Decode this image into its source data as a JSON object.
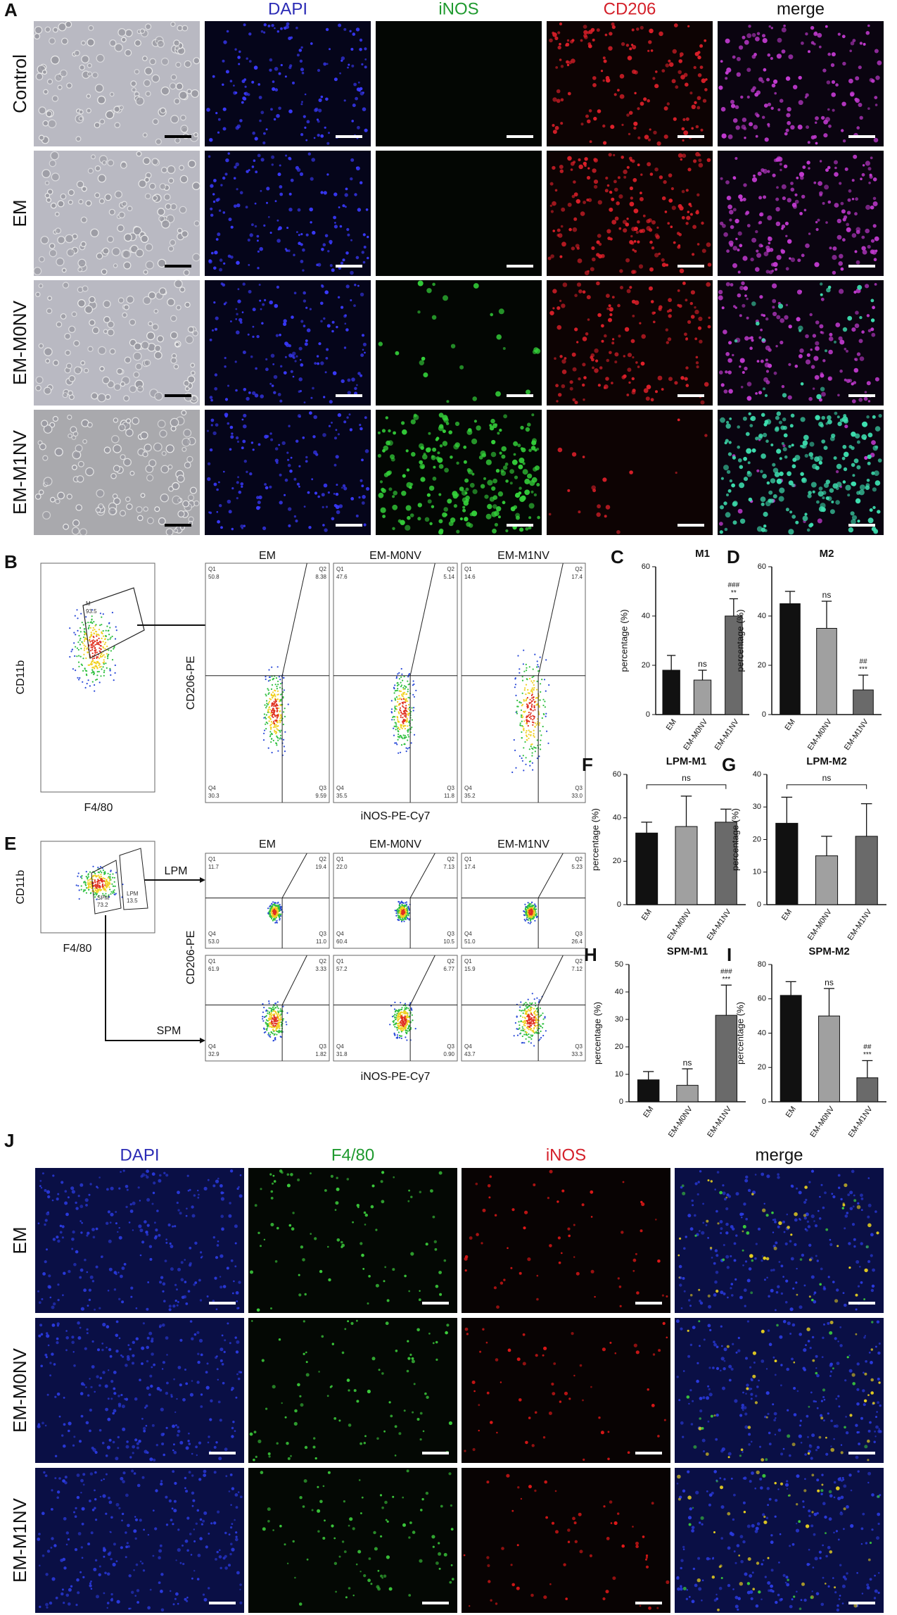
{
  "panel_a": {
    "label": "A",
    "columns": [
      "DAPI",
      "iNOS",
      "CD206",
      "merge"
    ],
    "rows": [
      "Control",
      "EM",
      "EM-M0NV",
      "EM-M1NV"
    ]
  },
  "panel_b": {
    "label": "B",
    "gate": {
      "y_axis": "CD11b",
      "x_axis": "F4/80",
      "name": "M",
      "percent": "93.5"
    },
    "groups": [
      "EM",
      "EM-M0NV",
      "EM-M1NV"
    ],
    "y_axis": "CD206-PE",
    "x_axis": "iNOS-PE-Cy7",
    "quadrant_names": [
      "Q1",
      "Q2",
      "Q3",
      "Q4"
    ],
    "quadrants": [
      [
        "50.8",
        "8.38",
        "9.59",
        "30.3"
      ],
      [
        "47.6",
        "5.14",
        "11.8",
        "35.5"
      ],
      [
        "14.6",
        "17.4",
        "33.0",
        "35.2"
      ]
    ]
  },
  "panel_e": {
    "label": "E",
    "gate": {
      "y_axis": "CD11b",
      "x_axis": "F4/80",
      "lpm": "LPM",
      "lpm_percent": "13.5",
      "spm": "SPM",
      "spm_percent": "73.2"
    },
    "arrows": [
      "LPM",
      "SPM"
    ],
    "groups": [
      "EM",
      "EM-M0NV",
      "EM-M1NV"
    ],
    "y_axis": "CD206-PE",
    "x_axis": "iNOS-PE-Cy7",
    "quadrant_names": [
      "Q1",
      "Q2",
      "Q3",
      "Q4"
    ],
    "lpm_quadrants": [
      [
        "11.7",
        "19.4",
        "11.0",
        "53.0"
      ],
      [
        "22.0",
        "7.13",
        "10.5",
        "60.4"
      ],
      [
        "17.4",
        "5.23",
        "26.4",
        "51.0"
      ]
    ],
    "spm_quadrants": [
      [
        "61.9",
        "3.33",
        "1.82",
        "32.9"
      ],
      [
        "57.2",
        "6.77",
        "0.90",
        "31.8"
      ],
      [
        "15.9",
        "7.12",
        "33.3",
        "43.7"
      ]
    ]
  },
  "chart_data": [
    {
      "type": "bar",
      "panel": "C",
      "title": "M1",
      "y_label": "percentage (%)",
      "categories": [
        "EM",
        "EM-M0NV",
        "EM-M1NV"
      ],
      "values": [
        18,
        14,
        40
      ],
      "errors": [
        6,
        4,
        7
      ],
      "colors": [
        "#111111",
        "#a0a0a0",
        "#6a6a6a"
      ],
      "ylim": [
        0,
        60
      ],
      "yticks": [
        0,
        20,
        40,
        60
      ],
      "annotations": [
        [],
        [
          "ns"
        ],
        [
          "###",
          "**"
        ]
      ]
    },
    {
      "type": "bar",
      "panel": "D",
      "title": "M2",
      "y_label": "percentage (%)",
      "categories": [
        "EM",
        "EM-M0NV",
        "EM-M1NV"
      ],
      "values": [
        45,
        35,
        10
      ],
      "errors": [
        5,
        11,
        6
      ],
      "colors": [
        "#111111",
        "#a0a0a0",
        "#6a6a6a"
      ],
      "ylim": [
        0,
        60
      ],
      "yticks": [
        0,
        20,
        40,
        60
      ],
      "annotations": [
        [],
        [
          "ns"
        ],
        [
          "##",
          "***"
        ]
      ]
    },
    {
      "type": "bar",
      "panel": "F",
      "title": "LPM-M1",
      "y_label": "percentage (%)",
      "categories": [
        "EM",
        "EM-M0NV",
        "EM-M1NV"
      ],
      "values": [
        33,
        36,
        38
      ],
      "errors": [
        5,
        14,
        6
      ],
      "colors": [
        "#111111",
        "#a0a0a0",
        "#6a6a6a"
      ],
      "ylim": [
        0,
        60
      ],
      "yticks": [
        0,
        20,
        40,
        60
      ],
      "bracket_label": "ns"
    },
    {
      "type": "bar",
      "panel": "G",
      "title": "LPM-M2",
      "y_label": "percentage (%)",
      "categories": [
        "EM",
        "EM-M0NV",
        "EM-M1NV"
      ],
      "values": [
        25,
        15,
        21
      ],
      "errors": [
        8,
        6,
        10
      ],
      "colors": [
        "#111111",
        "#a0a0a0",
        "#6a6a6a"
      ],
      "ylim": [
        0,
        40
      ],
      "yticks": [
        0,
        10,
        20,
        30,
        40
      ],
      "bracket_label": "ns"
    },
    {
      "type": "bar",
      "panel": "H",
      "title": "SPM-M1",
      "y_label": "percentage (%)",
      "categories": [
        "EM",
        "EM-M0NV",
        "EM-M1NV"
      ],
      "values": [
        8,
        6,
        31.5
      ],
      "errors": [
        3,
        6,
        11
      ],
      "colors": [
        "#111111",
        "#a0a0a0",
        "#6a6a6a"
      ],
      "ylim": [
        0,
        50
      ],
      "yticks": [
        0,
        10,
        20,
        30,
        40,
        50
      ],
      "annotations": [
        [],
        [
          "ns"
        ],
        [
          "###",
          "***"
        ]
      ]
    },
    {
      "type": "bar",
      "panel": "I",
      "title": "SPM-M2",
      "y_label": "percentage (%)",
      "categories": [
        "EM",
        "EM-M0NV",
        "EM-M1NV"
      ],
      "values": [
        62,
        50,
        14
      ],
      "errors": [
        8,
        16,
        10
      ],
      "colors": [
        "#111111",
        "#a0a0a0",
        "#6a6a6a"
      ],
      "ylim": [
        0,
        80
      ],
      "yticks": [
        0,
        20,
        40,
        60,
        80
      ],
      "annotations": [
        [],
        [
          "ns"
        ],
        [
          "##",
          "***"
        ]
      ]
    }
  ],
  "panel_j": {
    "label": "J",
    "columns": [
      "DAPI",
      "F4/80",
      "iNOS",
      "merge"
    ],
    "rows": [
      "EM",
      "EM-M0NV",
      "EM-M1NV"
    ]
  }
}
